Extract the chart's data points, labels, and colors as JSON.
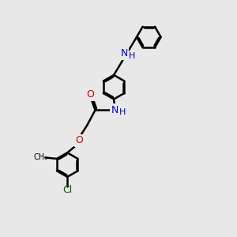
{
  "bg_color": "#e8e8e8",
  "bond_color": "#000000",
  "n_color": "#0000bb",
  "o_color": "#cc0000",
  "cl_color": "#006600",
  "lw": 1.8,
  "figsize": [
    3.0,
    3.0
  ],
  "dpi": 100,
  "xlim": [
    0,
    10
  ],
  "ylim": [
    0,
    10
  ]
}
